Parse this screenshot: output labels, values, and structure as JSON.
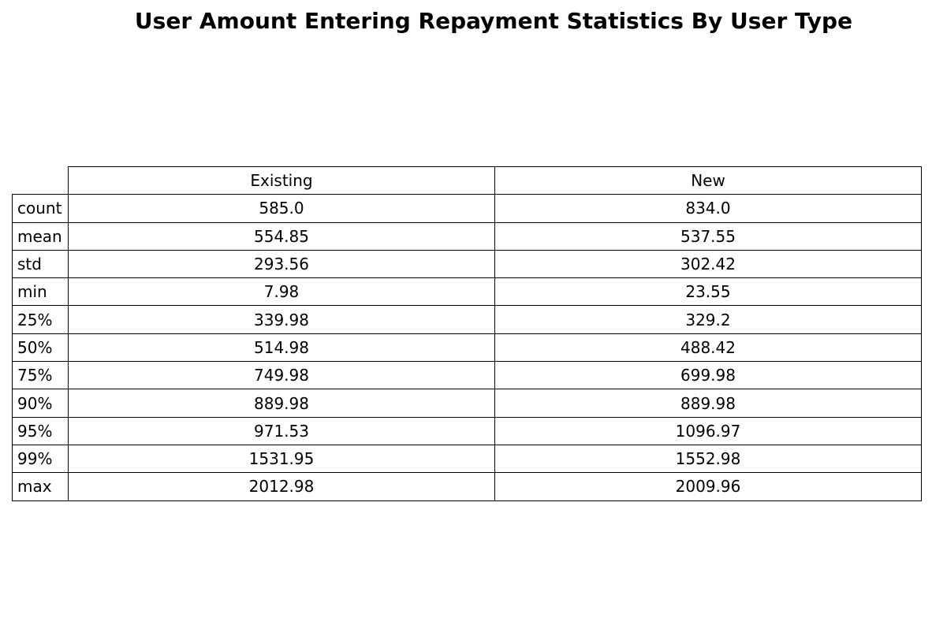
{
  "chart_data": {
    "type": "table",
    "title": "User Amount Entering Repayment Statistics By User Type",
    "columns": [
      "Existing",
      "New"
    ],
    "rows": [
      {
        "label": "count",
        "values": [
          "585.0",
          "834.0"
        ]
      },
      {
        "label": "mean",
        "values": [
          "554.85",
          "537.55"
        ]
      },
      {
        "label": "std",
        "values": [
          "293.56",
          "302.42"
        ]
      },
      {
        "label": "min",
        "values": [
          "7.98",
          "23.55"
        ]
      },
      {
        "label": "25%",
        "values": [
          "339.98",
          "329.2"
        ]
      },
      {
        "label": "50%",
        "values": [
          "514.98",
          "488.42"
        ]
      },
      {
        "label": "75%",
        "values": [
          "749.98",
          "699.98"
        ]
      },
      {
        "label": "90%",
        "values": [
          "889.98",
          "889.98"
        ]
      },
      {
        "label": "95%",
        "values": [
          "971.53",
          "1096.97"
        ]
      },
      {
        "label": "99%",
        "values": [
          "1531.95",
          "1552.98"
        ]
      },
      {
        "label": "max",
        "values": [
          "2012.98",
          "2009.96"
        ]
      }
    ]
  }
}
